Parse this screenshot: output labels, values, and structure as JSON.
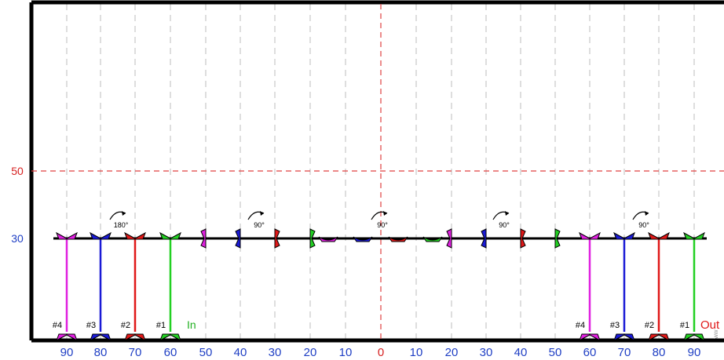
{
  "y_labels": [
    {
      "text": "50",
      "color": "#d62020"
    },
    {
      "text": "30",
      "color": "#1f3fc4"
    }
  ],
  "x_ticks": [
    {
      "text": "90",
      "color": "#1f3fc4"
    },
    {
      "text": "80",
      "color": "#1f3fc4"
    },
    {
      "text": "70",
      "color": "#1f3fc4"
    },
    {
      "text": "60",
      "color": "#1f3fc4"
    },
    {
      "text": "50",
      "color": "#1f3fc4"
    },
    {
      "text": "40",
      "color": "#1f3fc4"
    },
    {
      "text": "30",
      "color": "#1f3fc4"
    },
    {
      "text": "20",
      "color": "#1f3fc4"
    },
    {
      "text": "10",
      "color": "#1f3fc4"
    },
    {
      "text": "0",
      "color": "#d62020"
    },
    {
      "text": "10",
      "color": "#1f3fc4"
    },
    {
      "text": "20",
      "color": "#1f3fc4"
    },
    {
      "text": "30",
      "color": "#1f3fc4"
    },
    {
      "text": "40",
      "color": "#1f3fc4"
    },
    {
      "text": "50",
      "color": "#1f3fc4"
    },
    {
      "text": "60",
      "color": "#1f3fc4"
    },
    {
      "text": "70",
      "color": "#1f3fc4"
    },
    {
      "text": "80",
      "color": "#1f3fc4"
    },
    {
      "text": "90",
      "color": "#1f3fc4"
    }
  ],
  "colors": {
    "magenta": "#e020e0",
    "blue": "#1a1ad6",
    "red": "#e01818",
    "green": "#22d022",
    "grid": "#c8c8c8",
    "center": "#e04040",
    "axis": "#1f3fc4"
  },
  "in_group": {
    "label": "In",
    "label_color": "#22b022",
    "items": [
      {
        "id": "#4",
        "color": "magenta"
      },
      {
        "id": "#3",
        "color": "blue"
      },
      {
        "id": "#2",
        "color": "red"
      },
      {
        "id": "#1",
        "color": "green"
      }
    ]
  },
  "out_group": {
    "label": "Out",
    "label_color": "#e01818",
    "items": [
      {
        "id": "#4",
        "color": "magenta"
      },
      {
        "id": "#3",
        "color": "blue"
      },
      {
        "id": "#2",
        "color": "red"
      },
      {
        "id": "#1",
        "color": "green"
      }
    ]
  },
  "rotations": [
    "180°",
    "90°",
    "90°",
    "90°",
    "90°"
  ],
  "stations": [
    {
      "color": "magenta",
      "orientation": "down"
    },
    {
      "color": "blue",
      "orientation": "down"
    },
    {
      "color": "red",
      "orientation": "down"
    },
    {
      "color": "green",
      "orientation": "down"
    },
    {
      "color": "magenta",
      "orientation": "side"
    },
    {
      "color": "blue",
      "orientation": "side"
    },
    {
      "color": "red",
      "orientation": "side"
    },
    {
      "color": "green",
      "orientation": "side"
    },
    {
      "color": "magenta",
      "orientation": "up"
    },
    {
      "color": "blue",
      "orientation": "up"
    },
    {
      "color": "red",
      "orientation": "up"
    },
    {
      "color": "green",
      "orientation": "up"
    },
    {
      "color": "magenta",
      "orientation": "side"
    },
    {
      "color": "blue",
      "orientation": "side"
    },
    {
      "color": "red",
      "orientation": "side"
    },
    {
      "color": "green",
      "orientation": "side"
    },
    {
      "color": "magenta",
      "orientation": "down"
    },
    {
      "color": "blue",
      "orientation": "down"
    },
    {
      "color": "red",
      "orientation": "down"
    },
    {
      "color": "green",
      "orientation": "down"
    }
  ],
  "watermark": "ww"
}
